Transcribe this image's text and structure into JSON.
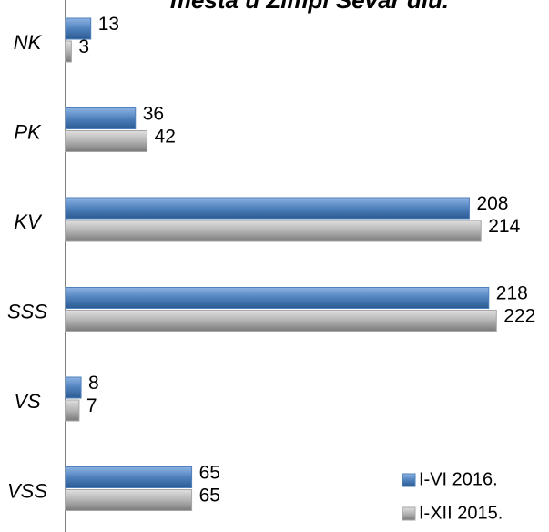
{
  "chart_data": {
    "type": "bar",
    "orientation": "horizontal",
    "title": "mesta u Zimpi Sevar diu.",
    "categories": [
      "NK",
      "PK",
      "KV",
      "SSS",
      "VS",
      "VSS"
    ],
    "xlim": [
      0,
      250
    ],
    "series": [
      {
        "name": "I-VI 2016.",
        "color": "#4f81bd",
        "values": [
          13,
          36,
          208,
          218,
          8,
          65
        ]
      },
      {
        "name": "I-XII 2015.",
        "color": "#a6a6a6",
        "values": [
          3,
          42,
          214,
          222,
          7,
          65
        ]
      }
    ]
  }
}
